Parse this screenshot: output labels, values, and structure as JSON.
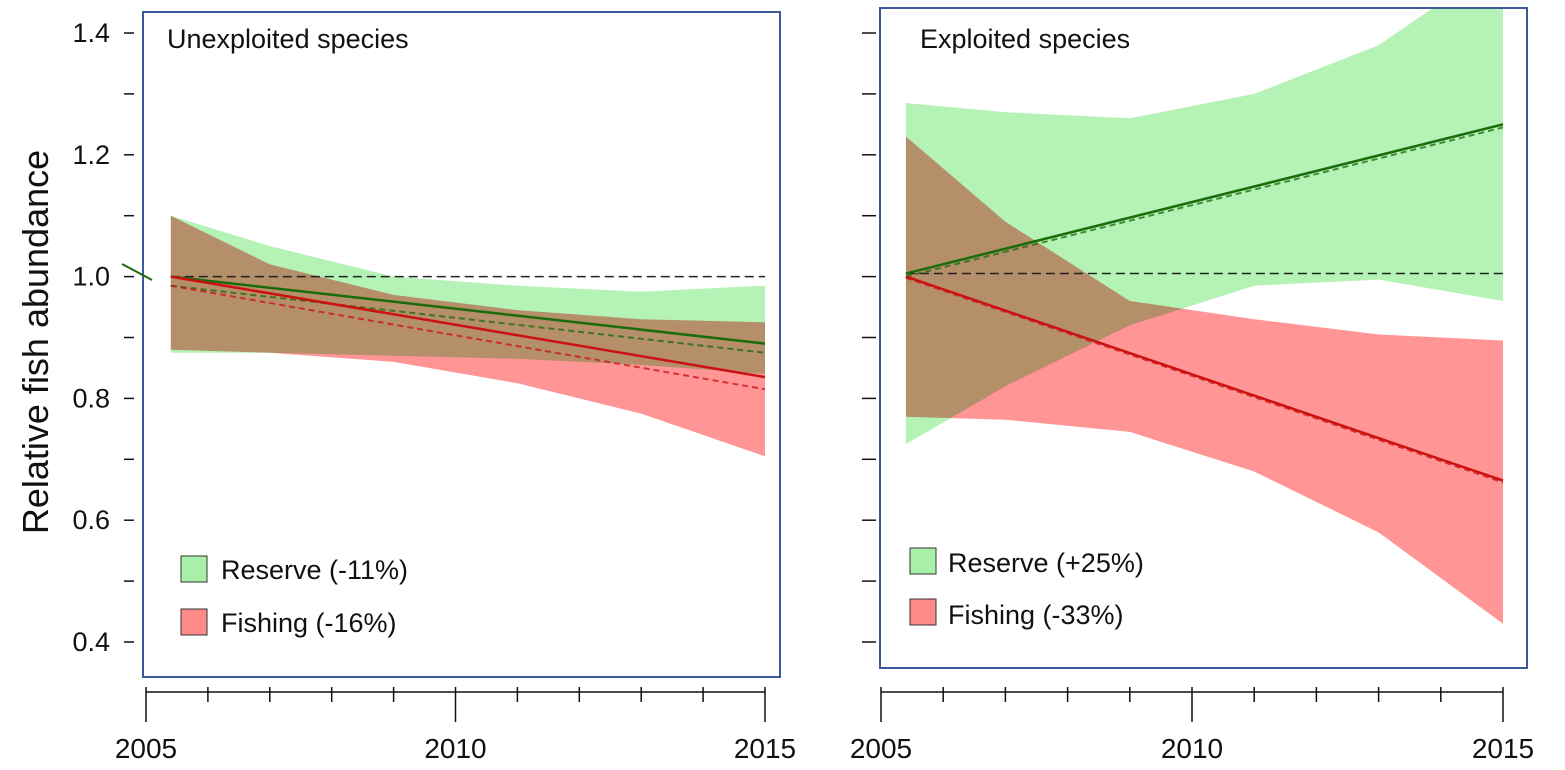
{
  "chart_data": {
    "type": "line",
    "ylabel": "Relative fish abundance",
    "y_ticks": [
      0.4,
      0.6,
      0.8,
      1.0,
      1.2,
      1.4
    ],
    "y_tick_labels": [
      "0.4",
      "0.6",
      "0.8",
      "1.0",
      "1.2",
      "1.4"
    ],
    "x_ticks": [
      2005,
      2010,
      2015
    ],
    "x_tick_labels": [
      "2005",
      "2010",
      "2015"
    ],
    "xlim": [
      2005,
      2015
    ],
    "ylim": [
      0.4,
      1.4
    ],
    "grid": false,
    "legend_position": "bottom-left",
    "colors": {
      "reserve_line": "#1a6b0a",
      "reserve_band": "#a8f0a8",
      "fishing_line": "#cc1111",
      "fishing_band": "#ff8a8a",
      "overlap_band": "#c98a6a",
      "frame": "#3a5a99",
      "reference_line": "#222222"
    },
    "panels": [
      {
        "title": "Unexploited species",
        "reference_y": 1.0,
        "legend": [
          {
            "label": "Reserve (-11%)",
            "color": "#a8f0a8"
          },
          {
            "label": "Fishing (-16%)",
            "color": "#ff8a8a"
          }
        ],
        "series": [
          {
            "name": "Reserve (-11%)",
            "x": [
              2005.4,
              2015
            ],
            "y": [
              1.0,
              0.89
            ],
            "dashed_y": [
              0.985,
              0.875
            ],
            "band_x": [
              2005.4,
              2007,
              2009,
              2011,
              2013,
              2015
            ],
            "band_upper": [
              1.1,
              1.05,
              1.0,
              0.985,
              0.975,
              0.985
            ],
            "band_lower": [
              0.875,
              0.875,
              0.87,
              0.865,
              0.855,
              0.84
            ]
          },
          {
            "name": "Fishing (-16%)",
            "x": [
              2005.4,
              2015
            ],
            "y": [
              1.0,
              0.835
            ],
            "dashed_y": [
              0.985,
              0.815
            ],
            "band_x": [
              2005.4,
              2007,
              2009,
              2011,
              2013,
              2015
            ],
            "band_upper": [
              1.1,
              1.02,
              0.97,
              0.945,
              0.93,
              0.925
            ],
            "band_lower": [
              0.88,
              0.875,
              0.86,
              0.825,
              0.775,
              0.705
            ]
          }
        ]
      },
      {
        "title": "Exploited species",
        "reference_y": 1.005,
        "legend": [
          {
            "label": "Reserve (+25%)",
            "color": "#a8f0a8"
          },
          {
            "label": "Fishing (-33%)",
            "color": "#ff8a8a"
          }
        ],
        "series": [
          {
            "name": "Reserve (+25%)",
            "x": [
              2005.4,
              2015
            ],
            "y": [
              1.005,
              1.25
            ],
            "dashed_y": [
              1.0,
              1.245
            ],
            "band_x": [
              2005.4,
              2007,
              2009,
              2011,
              2013,
              2015
            ],
            "band_upper": [
              1.285,
              1.27,
              1.26,
              1.3,
              1.38,
              1.52
            ],
            "band_lower": [
              0.725,
              0.82,
              0.92,
              0.985,
              0.995,
              0.96
            ]
          },
          {
            "name": "Fishing (-33%)",
            "x": [
              2005.4,
              2015
            ],
            "y": [
              1.0,
              0.665
            ],
            "dashed_y": [
              0.998,
              0.662
            ],
            "band_x": [
              2005.4,
              2007,
              2009,
              2011,
              2013,
              2015
            ],
            "band_upper": [
              1.23,
              1.09,
              0.96,
              0.93,
              0.905,
              0.895
            ],
            "band_lower": [
              0.77,
              0.765,
              0.745,
              0.68,
              0.58,
              0.43
            ]
          }
        ]
      }
    ]
  }
}
